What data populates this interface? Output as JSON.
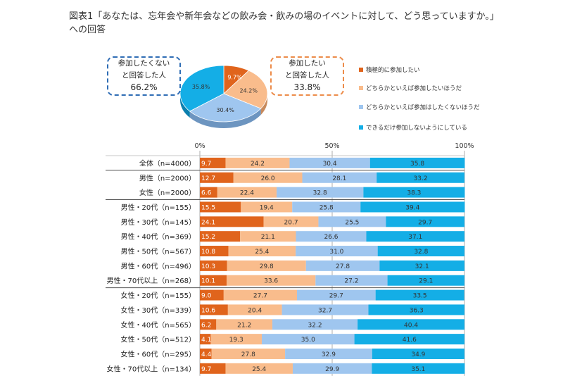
{
  "title": {
    "line1": "図表1「あなたは、忘年会や新年会などの飲み会・飲みの場のイベントに対して、どう思っていますか。」",
    "line2": "への回答"
  },
  "callouts": {
    "left": {
      "line1": "参加したくない",
      "line2": "と回答した人",
      "value": "66.2%",
      "color": "#2f6db5"
    },
    "right": {
      "line1": "参加したい",
      "line2": "と回答した人",
      "value": "33.8%",
      "color": "#ec8c4a"
    }
  },
  "colors": [
    "#e0641c",
    "#f9bc8c",
    "#9fc6ef",
    "#14aee6"
  ],
  "chart_data": [
    {
      "type": "pie",
      "labels": [
        "積極的に参加したい",
        "どちらかといえば参加したいほうだ",
        "どちらかといえば参加はしたくないほうだ",
        "できるだけ参加しないようにしている"
      ],
      "values": [
        9.7,
        24.2,
        30.4,
        35.8
      ],
      "value_labels": [
        "9.7%",
        "24.2%",
        "30.4%",
        "35.8%"
      ],
      "legend": "right"
    },
    {
      "type": "bar",
      "orientation": "horizontal",
      "stacked": true,
      "xlim": [
        0,
        100
      ],
      "ticks": [
        "0%",
        "50%",
        "100%"
      ],
      "series": [
        {
          "name": "積極的に参加したい",
          "values": [
            9.7,
            12.7,
            6.6,
            15.5,
            24.1,
            15.2,
            10.8,
            10.3,
            10.1,
            9.0,
            10.6,
            6.2,
            4.1,
            4.4,
            9.7
          ]
        },
        {
          "name": "どちらかといえば参加したいほうだ",
          "values": [
            24.2,
            26.0,
            22.4,
            19.4,
            20.7,
            21.1,
            25.4,
            29.8,
            33.6,
            27.7,
            20.4,
            21.2,
            19.3,
            27.8,
            25.4
          ]
        },
        {
          "name": "どちらかといえば参加はしたくないほうだ",
          "values": [
            30.4,
            28.1,
            32.8,
            25.8,
            25.5,
            26.6,
            31.0,
            27.8,
            27.2,
            29.7,
            32.7,
            32.2,
            35.0,
            32.9,
            29.9
          ]
        },
        {
          "name": "できるだけ参加しないようにしている",
          "values": [
            35.8,
            33.2,
            38.3,
            39.4,
            29.7,
            37.1,
            32.8,
            32.1,
            29.1,
            33.5,
            36.3,
            40.4,
            41.6,
            34.9,
            35.1
          ]
        }
      ],
      "categories": [
        "全体（n=4000）",
        "男性（n=2000）",
        "女性（n=2000）",
        "男性・20代（n=155）",
        "男性・30代（n=145）",
        "男性・40代（n=369）",
        "男性・50代（n=567）",
        "男性・60代（n=496）",
        "男性・70代以上（n=268）",
        "女性・20代（n=155）",
        "女性・30代（n=339）",
        "女性・40代（n=565）",
        "女性・50代（n=512）",
        "女性・60代（n=295）",
        "女性・70代以上（n=134）"
      ],
      "group_breaks_after": [
        0,
        2,
        8
      ]
    }
  ]
}
